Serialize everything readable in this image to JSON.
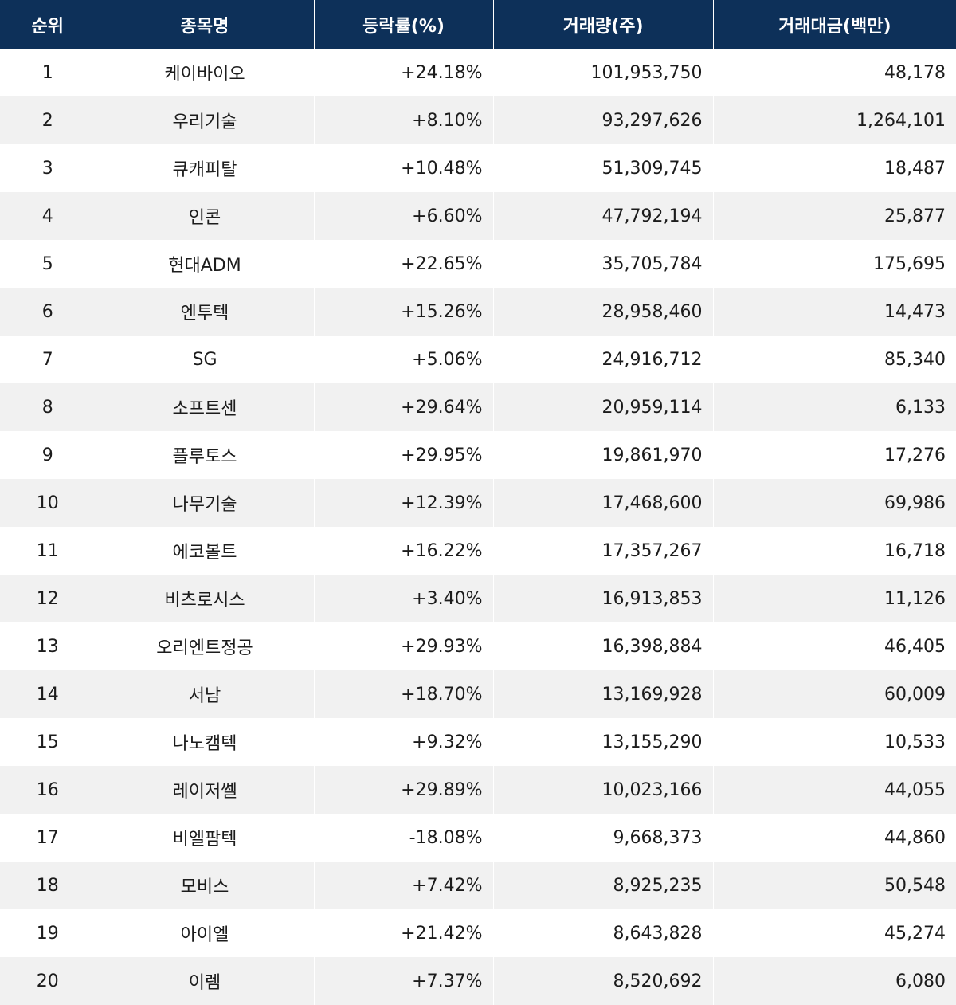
{
  "table": {
    "headers": {
      "rank": "순위",
      "name": "종목명",
      "change": "등락률(%)",
      "volume": "거래량(주)",
      "amount": "거래대금(백만)"
    },
    "rows": [
      {
        "rank": "1",
        "name": "케이바이오",
        "change": "+24.18%",
        "volume": "101,953,750",
        "amount": "48,178"
      },
      {
        "rank": "2",
        "name": "우리기술",
        "change": "+8.10%",
        "volume": "93,297,626",
        "amount": "1,264,101"
      },
      {
        "rank": "3",
        "name": "큐캐피탈",
        "change": "+10.48%",
        "volume": "51,309,745",
        "amount": "18,487"
      },
      {
        "rank": "4",
        "name": "인콘",
        "change": "+6.60%",
        "volume": "47,792,194",
        "amount": "25,877"
      },
      {
        "rank": "5",
        "name": "현대ADM",
        "change": "+22.65%",
        "volume": "35,705,784",
        "amount": "175,695"
      },
      {
        "rank": "6",
        "name": "엔투텍",
        "change": "+15.26%",
        "volume": "28,958,460",
        "amount": "14,473"
      },
      {
        "rank": "7",
        "name": "SG",
        "change": "+5.06%",
        "volume": "24,916,712",
        "amount": "85,340"
      },
      {
        "rank": "8",
        "name": "소프트센",
        "change": "+29.64%",
        "volume": "20,959,114",
        "amount": "6,133"
      },
      {
        "rank": "9",
        "name": "플루토스",
        "change": "+29.95%",
        "volume": "19,861,970",
        "amount": "17,276"
      },
      {
        "rank": "10",
        "name": "나무기술",
        "change": "+12.39%",
        "volume": "17,468,600",
        "amount": "69,986"
      },
      {
        "rank": "11",
        "name": "에코볼트",
        "change": "+16.22%",
        "volume": "17,357,267",
        "amount": "16,718"
      },
      {
        "rank": "12",
        "name": "비츠로시스",
        "change": "+3.40%",
        "volume": "16,913,853",
        "amount": "11,126"
      },
      {
        "rank": "13",
        "name": "오리엔트정공",
        "change": "+29.93%",
        "volume": "16,398,884",
        "amount": "46,405"
      },
      {
        "rank": "14",
        "name": "서남",
        "change": "+18.70%",
        "volume": "13,169,928",
        "amount": "60,009"
      },
      {
        "rank": "15",
        "name": "나노캠텍",
        "change": "+9.32%",
        "volume": "13,155,290",
        "amount": "10,533"
      },
      {
        "rank": "16",
        "name": "레이저쎌",
        "change": "+29.89%",
        "volume": "10,023,166",
        "amount": "44,055"
      },
      {
        "rank": "17",
        "name": "비엘팜텍",
        "change": "-18.08%",
        "volume": "9,668,373",
        "amount": "44,860"
      },
      {
        "rank": "18",
        "name": "모비스",
        "change": "+7.42%",
        "volume": "8,925,235",
        "amount": "50,548"
      },
      {
        "rank": "19",
        "name": "아이엘",
        "change": "+21.42%",
        "volume": "8,643,828",
        "amount": "45,274"
      },
      {
        "rank": "20",
        "name": "이렘",
        "change": "+7.37%",
        "volume": "8,520,692",
        "amount": "6,080"
      }
    ]
  },
  "colors": {
    "header_background": "#0d3059",
    "header_text": "#ffffff",
    "row_alt_background": "#f1f1f1",
    "body_text": "#1c1c1c"
  }
}
